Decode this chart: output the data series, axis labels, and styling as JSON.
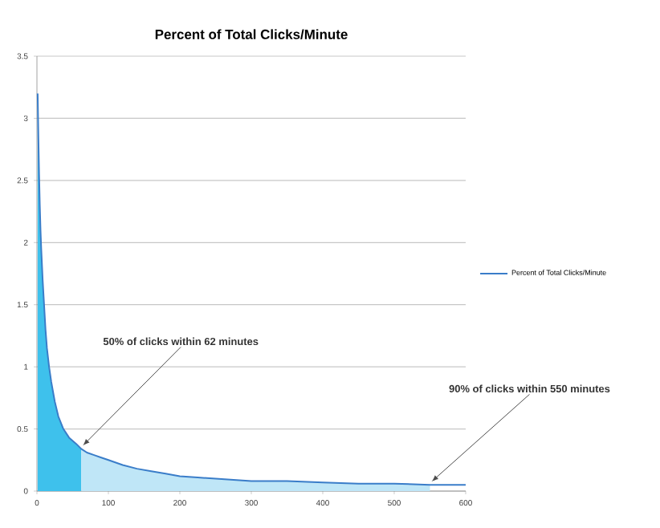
{
  "chart_data": {
    "type": "line",
    "title": "Percent of Total Clicks/Minute",
    "xlim": [
      0,
      600
    ],
    "xticks": [
      0,
      100,
      200,
      300,
      400,
      500,
      600
    ],
    "ylim": [
      0,
      3.5
    ],
    "yticks": [
      0,
      0.5,
      1,
      1.5,
      2,
      2.5,
      3,
      3.5
    ],
    "grid": "y",
    "legend": "right",
    "marker": "none",
    "line_style": "solid",
    "series": [
      {
        "type": "area",
        "color": "#3ec1ec",
        "x": [
          1,
          2,
          3,
          4,
          5,
          6,
          8,
          10,
          12,
          14,
          17,
          20,
          25,
          30,
          37,
          45,
          55,
          62
        ],
        "values": [
          3.2,
          2.85,
          2.55,
          2.3,
          2.1,
          1.95,
          1.7,
          1.5,
          1.3,
          1.15,
          1.0,
          0.88,
          0.72,
          0.6,
          0.5,
          0.43,
          0.38,
          0.34
        ]
      },
      {
        "type": "area",
        "color": "#bfe6f7",
        "x": [
          62,
          70,
          80,
          90,
          100,
          120,
          140,
          160,
          180,
          200,
          225,
          250,
          275,
          300,
          350,
          400,
          450,
          500,
          550
        ],
        "values": [
          0.34,
          0.31,
          0.29,
          0.27,
          0.25,
          0.21,
          0.18,
          0.16,
          0.14,
          0.12,
          0.11,
          0.1,
          0.09,
          0.08,
          0.08,
          0.07,
          0.06,
          0.06,
          0.05
        ]
      },
      {
        "name": "Percent of Total Clicks/Minute",
        "color": "#3a7dc9",
        "x": [
          1,
          2,
          3,
          4,
          5,
          6,
          8,
          10,
          12,
          14,
          17,
          20,
          25,
          30,
          37,
          45,
          55,
          62,
          70,
          80,
          90,
          100,
          120,
          140,
          160,
          180,
          200,
          225,
          250,
          275,
          300,
          350,
          400,
          450,
          500,
          550,
          600
        ],
        "values": [
          3.2,
          2.85,
          2.55,
          2.3,
          2.1,
          1.95,
          1.7,
          1.5,
          1.3,
          1.15,
          1.0,
          0.88,
          0.72,
          0.6,
          0.5,
          0.43,
          0.38,
          0.34,
          0.31,
          0.29,
          0.27,
          0.25,
          0.21,
          0.18,
          0.16,
          0.14,
          0.12,
          0.11,
          0.1,
          0.09,
          0.08,
          0.08,
          0.07,
          0.06,
          0.06,
          0.05,
          0.05
        ]
      }
    ],
    "annotations": [
      {
        "text": "50% of clicks within 62 minutes",
        "x": 62,
        "y": 0.34
      },
      {
        "text": "90% of clicks within 550 minutes",
        "x": 550,
        "y": 0.05
      }
    ]
  }
}
